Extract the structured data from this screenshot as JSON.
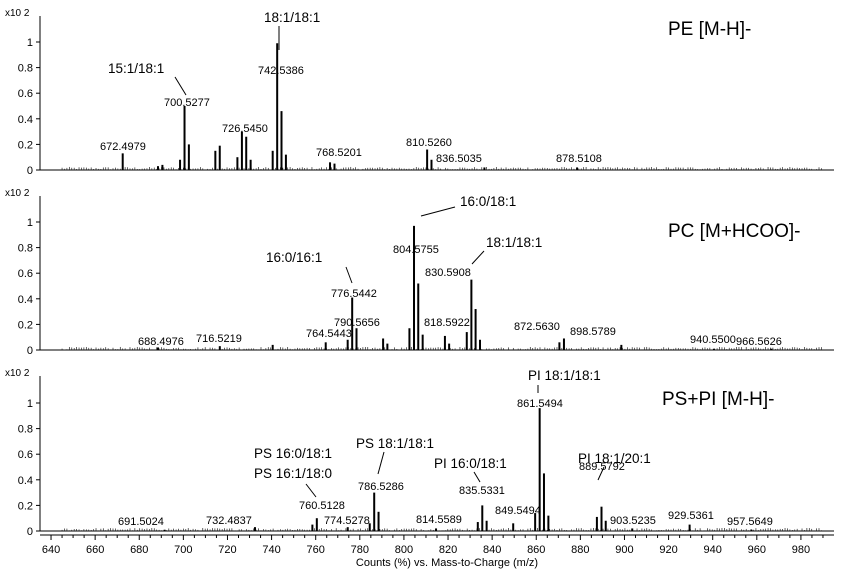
{
  "chart_data": {
    "type": "bar",
    "xlabel": "Counts (%) vs. Mass-to-Charge (m/z)",
    "xlim": [
      635,
      995
    ],
    "xticks": [
      640,
      660,
      680,
      700,
      720,
      740,
      760,
      780,
      800,
      820,
      840,
      860,
      880,
      900,
      920,
      940,
      960,
      980
    ],
    "y_multiplier": "x10 2",
    "ylim": [
      0,
      1.25
    ],
    "yticks": [
      0,
      0.2,
      0.4,
      0.6,
      0.8,
      1
    ],
    "ytick_labels": [
      "0",
      "0.2",
      "0.4",
      "0.6",
      "0.8",
      "1"
    ],
    "panels": [
      {
        "title": "PE [M-H]-",
        "peaks": [
          {
            "mz": 672.4979,
            "y": 0.13
          },
          {
            "mz": 700.5277,
            "y": 0.5
          },
          {
            "mz": 698.5,
            "y": 0.08
          },
          {
            "mz": 702.5,
            "y": 0.2
          },
          {
            "mz": 714.5,
            "y": 0.15
          },
          {
            "mz": 716.5,
            "y": 0.19
          },
          {
            "mz": 726.545,
            "y": 0.3
          },
          {
            "mz": 728.5,
            "y": 0.26
          },
          {
            "mz": 724.5,
            "y": 0.1
          },
          {
            "mz": 730.5,
            "y": 0.08
          },
          {
            "mz": 740.5,
            "y": 0.15
          },
          {
            "mz": 742.5386,
            "y": 0.99
          },
          {
            "mz": 744.5,
            "y": 0.46
          },
          {
            "mz": 746.5,
            "y": 0.12
          },
          {
            "mz": 768.5201,
            "y": 0.05
          },
          {
            "mz": 766.5,
            "y": 0.06
          },
          {
            "mz": 810.526,
            "y": 0.16
          },
          {
            "mz": 812.5,
            "y": 0.08
          },
          {
            "mz": 836.5035,
            "y": 0.02
          },
          {
            "mz": 878.5108,
            "y": 0.02
          },
          {
            "mz": 690.5,
            "y": 0.04
          },
          {
            "mz": 688.5,
            "y": 0.03
          }
        ],
        "labels": [
          {
            "mz": 672.4979,
            "text": "672.4979"
          },
          {
            "mz": 700.5277,
            "text": "700.5277"
          },
          {
            "mz": 726.545,
            "text": "726.5450"
          },
          {
            "mz": 742.5386,
            "text": "742.5386"
          },
          {
            "mz": 768.5201,
            "text": "768.5201"
          },
          {
            "mz": 810.526,
            "text": "810.5260"
          },
          {
            "mz": 836.5035,
            "text": "836.5035"
          },
          {
            "mz": 878.5108,
            "text": "878.5108"
          }
        ],
        "annotations": [
          {
            "text": "18:1/18:1",
            "mz": 742.5386
          },
          {
            "text": "15:1/18:1",
            "mz": 700.5277
          }
        ]
      },
      {
        "title": "PC [M+HCOO]-",
        "peaks": [
          {
            "mz": 688.4976,
            "y": 0.02
          },
          {
            "mz": 716.5219,
            "y": 0.03
          },
          {
            "mz": 740.5,
            "y": 0.04
          },
          {
            "mz": 764.5443,
            "y": 0.06
          },
          {
            "mz": 776.5442,
            "y": 0.41
          },
          {
            "mz": 778.5,
            "y": 0.17
          },
          {
            "mz": 774.5,
            "y": 0.08
          },
          {
            "mz": 790.5656,
            "y": 0.09
          },
          {
            "mz": 792.5,
            "y": 0.05
          },
          {
            "mz": 802.5,
            "y": 0.17
          },
          {
            "mz": 804.5755,
            "y": 0.97
          },
          {
            "mz": 806.5,
            "y": 0.52
          },
          {
            "mz": 808.5,
            "y": 0.12
          },
          {
            "mz": 818.5922,
            "y": 0.11
          },
          {
            "mz": 820.5,
            "y": 0.05
          },
          {
            "mz": 828.5,
            "y": 0.14
          },
          {
            "mz": 830.5908,
            "y": 0.55
          },
          {
            "mz": 832.5,
            "y": 0.32
          },
          {
            "mz": 834.5,
            "y": 0.08
          },
          {
            "mz": 872.563,
            "y": 0.09
          },
          {
            "mz": 870.5,
            "y": 0.06
          },
          {
            "mz": 898.5789,
            "y": 0.04
          },
          {
            "mz": 940.55,
            "y": 0.01
          },
          {
            "mz": 966.5626,
            "y": 0.01
          }
        ],
        "labels": [
          {
            "mz": 688.4976,
            "text": "688.4976"
          },
          {
            "mz": 716.5219,
            "text": "716.5219"
          },
          {
            "mz": 764.5443,
            "text": "764.5443"
          },
          {
            "mz": 776.5442,
            "text": "776.5442"
          },
          {
            "mz": 790.5656,
            "text": "790.5656"
          },
          {
            "mz": 804.5755,
            "text": "804.5755"
          },
          {
            "mz": 818.5922,
            "text": "818.5922"
          },
          {
            "mz": 830.5908,
            "text": "830.5908"
          },
          {
            "mz": 872.563,
            "text": "872.5630"
          },
          {
            "mz": 898.5789,
            "text": "898.5789"
          },
          {
            "mz": 940.55,
            "text": "940.5500"
          },
          {
            "mz": 966.5626,
            "text": "966.5626"
          }
        ],
        "annotations": [
          {
            "text": "16:0/18:1",
            "mz": 804.5755
          },
          {
            "text": "18:1/18:1",
            "mz": 830.5908
          },
          {
            "text": "16:0/16:1",
            "mz": 776.5442
          }
        ]
      },
      {
        "title": "PS+PI [M-H]-",
        "peaks": [
          {
            "mz": 691.5024,
            "y": 0.01
          },
          {
            "mz": 732.4837,
            "y": 0.03
          },
          {
            "mz": 760.5128,
            "y": 0.1
          },
          {
            "mz": 758.5,
            "y": 0.05
          },
          {
            "mz": 774.5278,
            "y": 0.03
          },
          {
            "mz": 786.5286,
            "y": 0.3
          },
          {
            "mz": 788.5,
            "y": 0.15
          },
          {
            "mz": 784.5,
            "y": 0.06
          },
          {
            "mz": 814.5589,
            "y": 0.02
          },
          {
            "mz": 833.5,
            "y": 0.07
          },
          {
            "mz": 835.5331,
            "y": 0.2
          },
          {
            "mz": 837.5,
            "y": 0.08
          },
          {
            "mz": 849.5494,
            "y": 0.06
          },
          {
            "mz": 859.5,
            "y": 0.14
          },
          {
            "mz": 861.5494,
            "y": 0.96
          },
          {
            "mz": 863.5,
            "y": 0.45
          },
          {
            "mz": 865.5,
            "y": 0.12
          },
          {
            "mz": 887.5,
            "y": 0.11
          },
          {
            "mz": 889.5792,
            "y": 0.19
          },
          {
            "mz": 891.5,
            "y": 0.08
          },
          {
            "mz": 903.5235,
            "y": 0.02
          },
          {
            "mz": 929.5361,
            "y": 0.05
          },
          {
            "mz": 957.5649,
            "y": 0.01
          }
        ],
        "labels": [
          {
            "mz": 691.5024,
            "text": "691.5024"
          },
          {
            "mz": 732.4837,
            "text": "732.4837"
          },
          {
            "mz": 760.5128,
            "text": "760.5128"
          },
          {
            "mz": 774.5278,
            "text": "774.5278"
          },
          {
            "mz": 786.5286,
            "text": "786.5286"
          },
          {
            "mz": 814.5589,
            "text": "814.5589"
          },
          {
            "mz": 835.5331,
            "text": "835.5331"
          },
          {
            "mz": 849.5494,
            "text": "849.5494"
          },
          {
            "mz": 861.5494,
            "text": "861.5494"
          },
          {
            "mz": 889.5792,
            "text": "889.5792"
          },
          {
            "mz": 903.5235,
            "text": "903.5235"
          },
          {
            "mz": 929.5361,
            "text": "929.5361"
          },
          {
            "mz": 957.5649,
            "text": "957.5649"
          }
        ],
        "annotations": [
          {
            "text": "PI 18:1/18:1",
            "mz": 861.5494
          },
          {
            "text": "PS 18:1/18:1",
            "mz": 786.5286
          },
          {
            "text": "PS 16:0/18:1",
            "mz": 760.5128
          },
          {
            "text": "PS 16:1/18:0",
            "mz": 760.5128
          },
          {
            "text": "PI 16:0/18:1",
            "mz": 835.5331
          },
          {
            "text": "PI 18:1/20:1",
            "mz": 889.5792
          }
        ]
      }
    ]
  }
}
